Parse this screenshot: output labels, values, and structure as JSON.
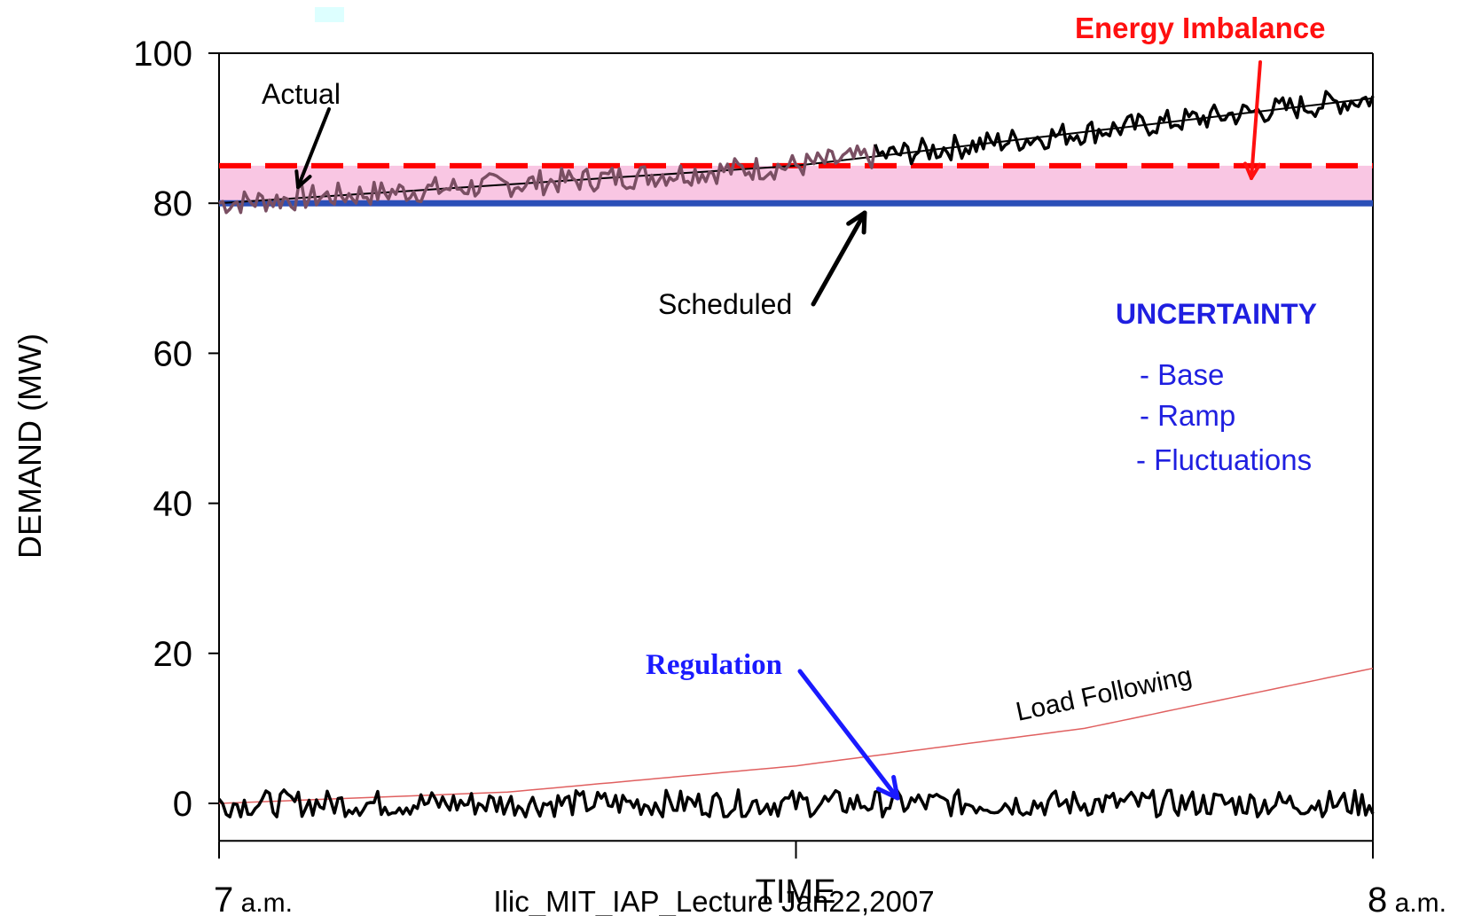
{
  "chart_data": {
    "type": "line",
    "ylabel": "DEMAND (MW)",
    "xlabel": "TIME",
    "ylim": [
      -5,
      100
    ],
    "y_ticks": [
      0,
      20,
      40,
      60,
      80,
      100
    ],
    "x_ticks": [
      {
        "major": "7",
        "minor": "a.m."
      },
      {
        "major": "",
        "minor": ""
      },
      {
        "major": "8",
        "minor": "a.m."
      }
    ],
    "scheduled_level": 80,
    "imbalance_threshold": 85,
    "series": [
      {
        "name": "Actual",
        "x": [
          0,
          0.5,
          1.0
        ],
        "values": [
          80,
          85,
          94
        ]
      },
      {
        "name": "Scheduled",
        "x": [
          0,
          1.0
        ],
        "values": [
          80,
          80
        ]
      },
      {
        "name": "Load Following",
        "x": [
          0,
          0.25,
          0.5,
          0.75,
          1.0
        ],
        "values": [
          0,
          1.5,
          5,
          10,
          18
        ]
      },
      {
        "name": "Regulation",
        "x": [
          0,
          1.0
        ],
        "values": [
          0,
          0
        ]
      }
    ],
    "annotations": {
      "actual": "Actual",
      "scheduled": "Scheduled",
      "energy_imbalance": "Energy Imbalance",
      "regulation": "Regulation",
      "load_following": "Load Following",
      "uncertainty_title": "UNCERTAINTY",
      "uncertainty_items": [
        "- Base",
        "- Ramp",
        "- Fluctuations"
      ]
    },
    "footer": "Ilic_MIT_IAP_Lecture Jan22,2007",
    "colors": {
      "band": "#f9c6e3",
      "scheduled": "#2b4fb8",
      "threshold": "#ff0000",
      "energy_text": "#ff1010",
      "regulation_text": "#1a1aff",
      "uncertainty_text": "#1f1fe0",
      "load_following": "#e06060",
      "actual_early": "#7a4f63",
      "actual_late": "#000000"
    }
  }
}
